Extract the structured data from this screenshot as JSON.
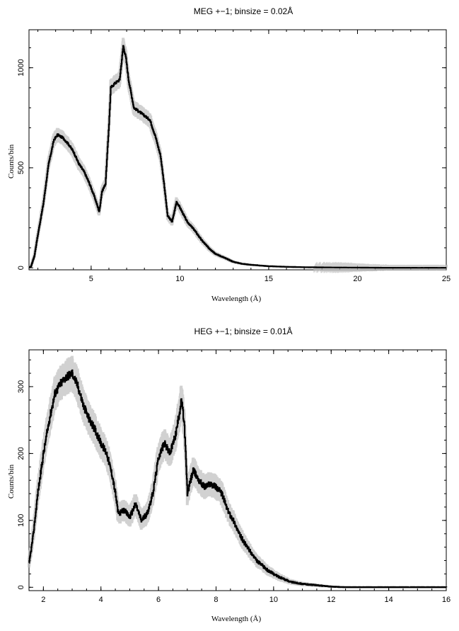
{
  "chart_data": [
    {
      "type": "line",
      "title": "MEG +−1; binsize = 0.02Å",
      "xlabel": "Wavelength (Å)",
      "ylabel": "Counts/bin",
      "xlim": [
        1.5,
        25
      ],
      "ylim": [
        -10,
        1190
      ],
      "xticks": [
        5,
        10,
        15,
        20,
        25
      ],
      "yticks": [
        0,
        500,
        1000
      ],
      "xtick_labels": [
        "5",
        "10",
        "15",
        "20",
        "25"
      ],
      "ytick_labels": [
        "0",
        "500",
        "1000"
      ],
      "grid": false,
      "series": [
        {
          "x": [
            1.6,
            1.8,
            2.0,
            2.3,
            2.6,
            2.9,
            3.1,
            3.4,
            3.7,
            4.0,
            4.3,
            4.6,
            4.9,
            5.2,
            5.45,
            5.6,
            5.8,
            6.0,
            6.1,
            6.3,
            6.6,
            6.8,
            6.95,
            7.1,
            7.4,
            7.7,
            8.0,
            8.3,
            8.6,
            8.9,
            9.1,
            9.3,
            9.55,
            9.8,
            10.0,
            10.4,
            10.8,
            11.2,
            11.6,
            12.0,
            12.5,
            13.0,
            13.5,
            14.0,
            15.0,
            16.0,
            17.0,
            18.0,
            20.0,
            22.0,
            25.0
          ],
          "y": [
            5,
            60,
            170,
            320,
            520,
            640,
            665,
            650,
            620,
            580,
            520,
            480,
            420,
            350,
            280,
            380,
            420,
            720,
            900,
            920,
            940,
            1110,
            1050,
            940,
            800,
            780,
            760,
            740,
            660,
            560,
            420,
            260,
            230,
            330,
            300,
            230,
            190,
            140,
            100,
            70,
            50,
            30,
            20,
            15,
            8,
            5,
            3,
            2,
            1,
            0,
            0
          ]
        }
      ]
    },
    {
      "type": "line",
      "title": "HEG +−1; binsize = 0.01Å",
      "xlabel": "Wavelength (Å)",
      "ylabel": "Counts/bin",
      "xlim": [
        1.5,
        16
      ],
      "ylim": [
        -5,
        355
      ],
      "xticks": [
        2,
        4,
        6,
        8,
        10,
        12,
        14,
        16
      ],
      "yticks": [
        0,
        100,
        200,
        300
      ],
      "xtick_labels": [
        "2",
        "4",
        "6",
        "8",
        "10",
        "12",
        "14",
        "16"
      ],
      "ytick_labels": [
        "0",
        "100",
        "200",
        "300"
      ],
      "grid": false,
      "series": [
        {
          "x": [
            1.5,
            1.65,
            1.8,
            2.0,
            2.2,
            2.4,
            2.6,
            2.8,
            3.0,
            3.2,
            3.4,
            3.6,
            3.8,
            4.0,
            4.2,
            4.4,
            4.5,
            4.6,
            4.8,
            5.0,
            5.2,
            5.4,
            5.6,
            5.8,
            6.0,
            6.2,
            6.4,
            6.6,
            6.8,
            6.9,
            7.0,
            7.2,
            7.4,
            7.6,
            7.8,
            8.0,
            8.2,
            8.4,
            8.6,
            8.8,
            9.0,
            9.4,
            9.8,
            10.2,
            10.6,
            11.0,
            11.5,
            12.0,
            12.5,
            13.0,
            14.0,
            15.0,
            16.0
          ],
          "y": [
            35,
            80,
            140,
            200,
            250,
            290,
            305,
            315,
            320,
            300,
            270,
            250,
            235,
            215,
            200,
            165,
            140,
            110,
            115,
            105,
            125,
            100,
            110,
            140,
            195,
            215,
            200,
            230,
            280,
            240,
            140,
            175,
            160,
            150,
            155,
            150,
            140,
            115,
            100,
            80,
            65,
            40,
            25,
            15,
            8,
            5,
            3,
            1,
            0,
            0,
            0,
            0,
            0
          ]
        }
      ]
    }
  ]
}
